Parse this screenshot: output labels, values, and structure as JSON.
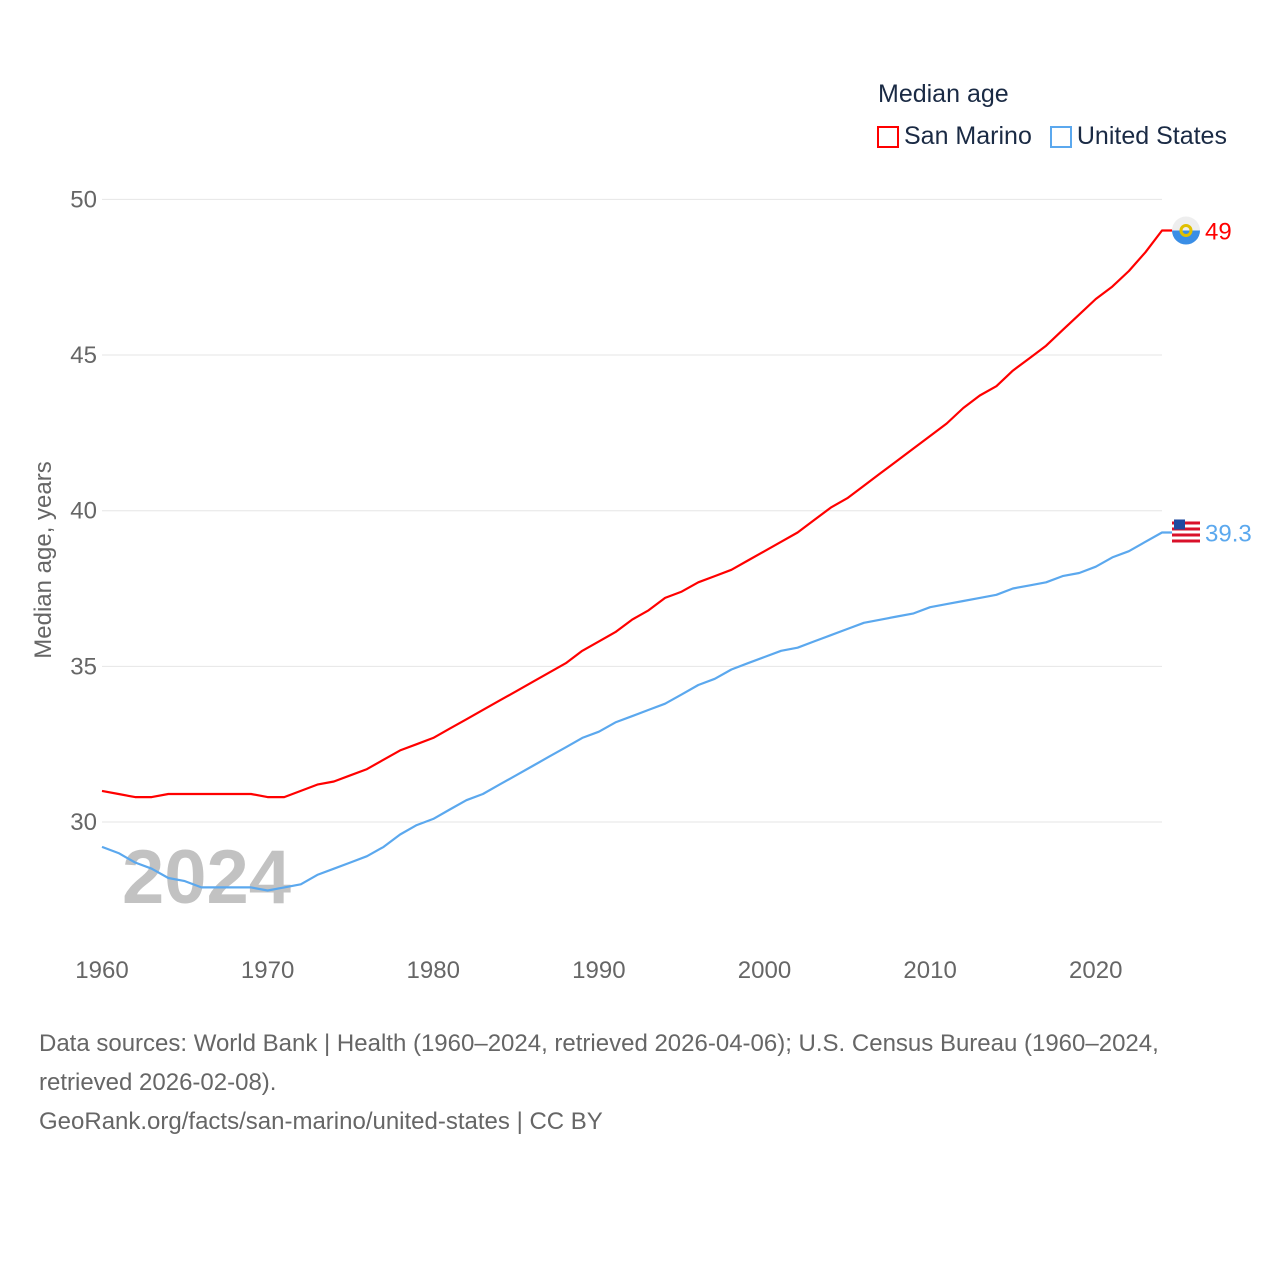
{
  "chart_data": {
    "type": "line",
    "title": "",
    "xlabel": "",
    "ylabel": "Median age, years",
    "ylim": [
      26,
      51
    ],
    "xlim": [
      1960,
      2024
    ],
    "yticks": [
      30,
      35,
      40,
      45,
      50
    ],
    "xticks": [
      1960,
      1970,
      1980,
      1990,
      2000,
      2010,
      2020
    ],
    "grid": true,
    "watermark_year": "2024",
    "legend": {
      "title": "Median age",
      "placement": "top-right"
    },
    "x": [
      1960,
      1961,
      1962,
      1963,
      1964,
      1965,
      1966,
      1967,
      1968,
      1969,
      1970,
      1971,
      1972,
      1973,
      1974,
      1975,
      1976,
      1977,
      1978,
      1979,
      1980,
      1981,
      1982,
      1983,
      1984,
      1985,
      1986,
      1987,
      1988,
      1989,
      1990,
      1991,
      1992,
      1993,
      1994,
      1995,
      1996,
      1997,
      1998,
      1999,
      2000,
      2001,
      2002,
      2003,
      2004,
      2005,
      2006,
      2007,
      2008,
      2009,
      2010,
      2011,
      2012,
      2013,
      2014,
      2015,
      2016,
      2017,
      2018,
      2019,
      2020,
      2021,
      2022,
      2023,
      2024
    ],
    "series": [
      {
        "name": "San Marino",
        "color": "#ff0000",
        "end_label": "49",
        "values": [
          31.0,
          30.9,
          30.8,
          30.8,
          30.9,
          30.9,
          30.9,
          30.9,
          30.9,
          30.9,
          30.8,
          30.8,
          31.0,
          31.2,
          31.3,
          31.5,
          31.7,
          32.0,
          32.3,
          32.5,
          32.7,
          33.0,
          33.3,
          33.6,
          33.9,
          34.2,
          34.5,
          34.8,
          35.1,
          35.5,
          35.8,
          36.1,
          36.5,
          36.8,
          37.2,
          37.4,
          37.7,
          37.9,
          38.1,
          38.4,
          38.7,
          39.0,
          39.3,
          39.7,
          40.1,
          40.4,
          40.8,
          41.2,
          41.6,
          42.0,
          42.4,
          42.8,
          43.3,
          43.7,
          44.0,
          44.5,
          44.9,
          45.3,
          45.8,
          46.3,
          46.8,
          47.2,
          47.7,
          48.3,
          49.0
        ]
      },
      {
        "name": "United States",
        "color": "#5ba8ee",
        "end_label": "39.3",
        "values": [
          29.2,
          29.0,
          28.7,
          28.5,
          28.2,
          28.1,
          27.9,
          27.9,
          27.9,
          27.9,
          27.8,
          27.9,
          28.0,
          28.3,
          28.5,
          28.7,
          28.9,
          29.2,
          29.6,
          29.9,
          30.1,
          30.4,
          30.7,
          30.9,
          31.2,
          31.5,
          31.8,
          32.1,
          32.4,
          32.7,
          32.9,
          33.2,
          33.4,
          33.6,
          33.8,
          34.1,
          34.4,
          34.6,
          34.9,
          35.1,
          35.3,
          35.5,
          35.6,
          35.8,
          36.0,
          36.2,
          36.4,
          36.5,
          36.6,
          36.7,
          36.9,
          37.0,
          37.1,
          37.2,
          37.3,
          37.5,
          37.6,
          37.7,
          37.9,
          38.0,
          38.2,
          38.5,
          38.7,
          39.0,
          39.3
        ]
      }
    ]
  },
  "footer": {
    "sources": "Data sources: World Bank | Health (1960–2024, retrieved 2026-04-06); U.S. Census Bureau (1960–2024, retrieved 2026-02-08).",
    "link": "GeoRank.org/facts/san-marino/united-states | CC BY"
  }
}
